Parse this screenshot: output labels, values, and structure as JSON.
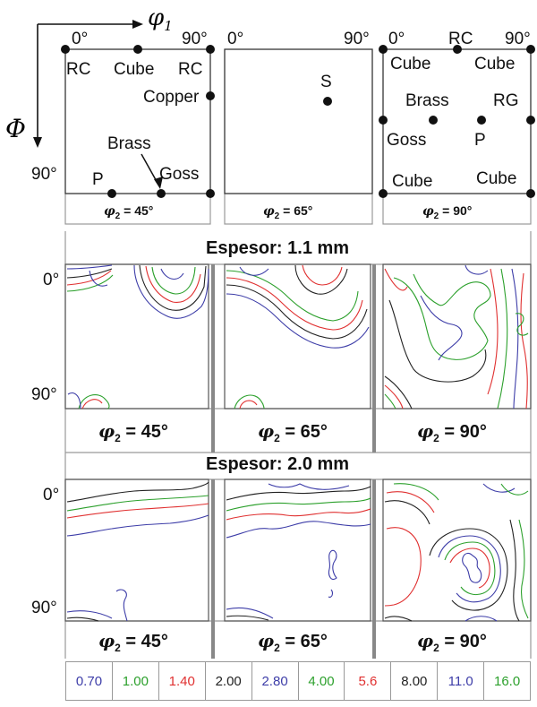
{
  "axes": {
    "phi1_label": "φ",
    "phi1_sub": "1",
    "Phi_label": "Φ"
  },
  "ideal_panels": [
    {
      "ticks": {
        "left": "0°",
        "right": "90°",
        "bottom": "90°"
      },
      "caption_phi": "φ",
      "caption_sub": "2",
      "caption_value": " = 45°",
      "labels": [
        "RC",
        "Cube",
        "RC",
        "Copper",
        "Brass",
        "P",
        "Goss"
      ]
    },
    {
      "ticks": {
        "left": "0°",
        "right": "90°"
      },
      "caption_phi": "φ",
      "caption_sub": "2",
      "caption_value": " = 65°",
      "labels": [
        "S"
      ]
    },
    {
      "ticks": {
        "left": "0°",
        "right": "90°"
      },
      "caption_phi": "φ",
      "caption_sub": "2",
      "caption_value": " = 90°",
      "labels": [
        "RC",
        "Cube",
        "Cube",
        "Brass",
        "RG",
        "Goss",
        "P",
        "Cube",
        "Cube"
      ]
    }
  ],
  "sections": [
    {
      "title": "Espesor: 1.1 mm",
      "tick_top": "0°",
      "tick_bottom": "90°",
      "captions": [
        {
          "phi": "φ",
          "sub": "2",
          "value": " = 45°"
        },
        {
          "phi": "φ",
          "sub": "2",
          "value": " = 65°"
        },
        {
          "phi": "φ",
          "sub": "2",
          "value": " = 90°"
        }
      ]
    },
    {
      "title": "Espesor: 2.0 mm",
      "tick_top": "0°",
      "tick_bottom": "90°",
      "captions": [
        {
          "phi": "φ",
          "sub": "2",
          "value": " = 45°"
        },
        {
          "phi": "φ",
          "sub": "2",
          "value": " = 65°"
        },
        {
          "phi": "φ",
          "sub": "2",
          "value": " = 90°"
        }
      ]
    }
  ],
  "contour_colors": {
    "black": "#222222",
    "blue": "#3d3da8",
    "green": "#2ca02c",
    "red": "#e03030"
  },
  "legend": [
    {
      "value": "0.70",
      "color": "#3d3da8"
    },
    {
      "value": "1.00",
      "color": "#2ca02c"
    },
    {
      "value": "1.40",
      "color": "#e03030"
    },
    {
      "value": "2.00",
      "color": "#222222"
    },
    {
      "value": "2.80",
      "color": "#3d3da8"
    },
    {
      "value": "4.00",
      "color": "#2ca02c"
    },
    {
      "value": "5.6",
      "color": "#e03030"
    },
    {
      "value": "8.00",
      "color": "#222222"
    },
    {
      "value": "11.0",
      "color": "#3d3da8"
    },
    {
      "value": "16.0",
      "color": "#2ca02c"
    }
  ]
}
